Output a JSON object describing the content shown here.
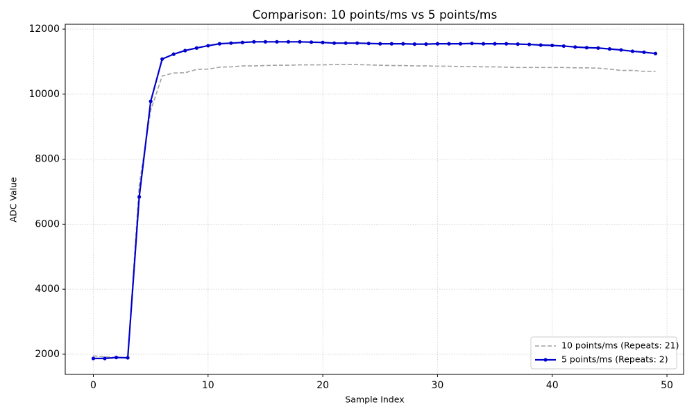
{
  "chart_data": {
    "type": "line",
    "title": "Comparison: 10 points/ms vs 5 points/ms",
    "xlabel": "Sample Index",
    "ylabel": "ADC Value",
    "x": [
      0,
      1,
      2,
      3,
      4,
      5,
      6,
      7,
      8,
      9,
      10,
      11,
      12,
      13,
      14,
      15,
      16,
      17,
      18,
      19,
      20,
      21,
      22,
      23,
      24,
      25,
      26,
      27,
      28,
      29,
      30,
      31,
      32,
      33,
      34,
      35,
      36,
      37,
      38,
      39,
      40,
      41,
      42,
      43,
      44,
      45,
      46,
      47,
      48,
      49
    ],
    "series": [
      {
        "name": "10 points/ms (Repeats: 21)",
        "color": "#a0a0a0",
        "linestyle": "dashed",
        "marker": false,
        "values": [
          1950,
          1920,
          1900,
          1900,
          7200,
          9500,
          10560,
          10650,
          10660,
          10760,
          10770,
          10830,
          10840,
          10870,
          10870,
          10880,
          10890,
          10890,
          10900,
          10900,
          10900,
          10910,
          10910,
          10910,
          10900,
          10890,
          10880,
          10880,
          10870,
          10870,
          10860,
          10860,
          10850,
          10850,
          10840,
          10840,
          10830,
          10820,
          10820,
          10820,
          10820,
          10820,
          10810,
          10810,
          10800,
          10770,
          10730,
          10730,
          10700,
          10700
        ]
      },
      {
        "name": "5 points/ms (Repeats: 2)",
        "color": "#0000cc",
        "linestyle": "solid",
        "marker": true,
        "values": [
          1870,
          1870,
          1900,
          1890,
          6840,
          9780,
          11080,
          11230,
          11340,
          11420,
          11490,
          11550,
          11570,
          11590,
          11610,
          11610,
          11610,
          11610,
          11610,
          11600,
          11590,
          11570,
          11570,
          11570,
          11560,
          11550,
          11550,
          11550,
          11540,
          11540,
          11550,
          11550,
          11550,
          11560,
          11550,
          11550,
          11550,
          11540,
          11530,
          11510,
          11500,
          11480,
          11450,
          11430,
          11420,
          11390,
          11360,
          11320,
          11290,
          11250
        ]
      }
    ],
    "xlim": [
      -2.45,
      51.45
    ],
    "xticks": [
      0,
      10,
      20,
      30,
      40,
      50
    ],
    "ylim": [
      1380,
      12150
    ],
    "yticks": [
      2000,
      4000,
      6000,
      8000,
      10000,
      12000
    ],
    "grid": true,
    "legend": "lower right"
  }
}
